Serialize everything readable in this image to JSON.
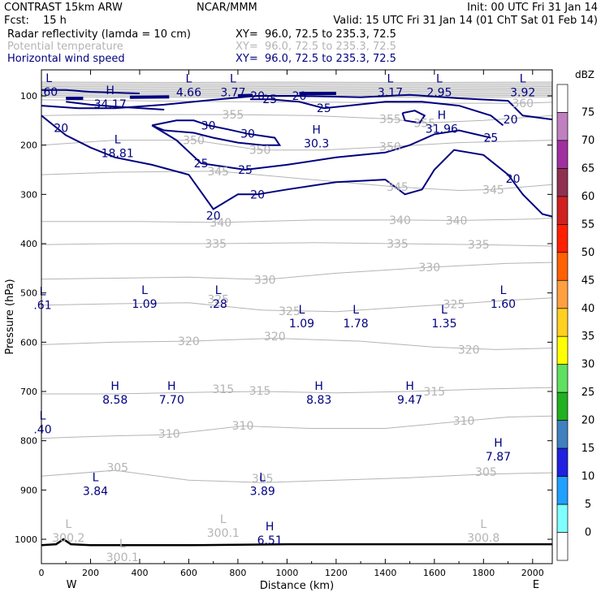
{
  "header": {
    "model": "CONTRAST 15km ARW",
    "center": "NCAR/MMM",
    "init": "Init: 00 UTC Fri 31 Jan 14",
    "fcst_label": "Fcst:",
    "fcst_value": "15 h",
    "valid": "Valid: 15 UTC Fri 31 Jan 14 (01 ChT Sat 01 Feb 14)"
  },
  "fields": [
    {
      "name": "Radar reflectivity (lamda = 10 cm)",
      "xy": "XY=  96.0, 72.5 to 235.3, 72.5"
    },
    {
      "name": "Potential temperature",
      "xy": "XY=  96.0, 72.5 to 235.3, 72.5"
    },
    {
      "name": "Horizontal wind speed",
      "xy": "XY=  96.0, 72.5 to 235.3, 72.5"
    }
  ],
  "colors": {
    "wind": "#000080",
    "theta": "#b4b4b4",
    "terrain": "#000000"
  },
  "chart_data": {
    "type": "contour",
    "xlabel": "Distance (km)",
    "ylabel": "Pressure (hPa)",
    "xlim": [
      0,
      2080
    ],
    "ylim": [
      1050,
      70
    ],
    "x_ticks": [
      "0",
      "200",
      "400",
      "600",
      "800",
      "1000",
      "1200",
      "1400",
      "1600",
      "1800",
      "2000"
    ],
    "y_ticks": [
      "100",
      "200",
      "300",
      "400",
      "500",
      "600",
      "700",
      "800",
      "900",
      "1000"
    ],
    "x_end_labels": {
      "left": "W",
      "right": "E"
    },
    "colorbar": {
      "unit": "dBZ",
      "levels": [
        "75",
        "70",
        "65",
        "60",
        "55",
        "50",
        "45",
        "40",
        "35",
        "30",
        "25",
        "20",
        "15",
        "10",
        "5",
        "0"
      ],
      "colors": [
        "#ffffff",
        "#c080c0",
        "#a030a0",
        "#903050",
        "#d02020",
        "#ff2000",
        "#ff6000",
        "#ffa040",
        "#ffd020",
        "#ffff00",
        "#60e060",
        "#20b020",
        "#4080c0",
        "#2020e0",
        "#20a0ff",
        "#80ffff",
        "#ffffff"
      ]
    },
    "theta_contours": {
      "levels": [
        300,
        305,
        310,
        315,
        320,
        325,
        330,
        335,
        340,
        345,
        350,
        355,
        360
      ],
      "labels": [
        {
          "text": "360",
          "x": 1960,
          "p": 115
        },
        {
          "text": "355",
          "x": 1420,
          "p": 147
        },
        {
          "text": "355",
          "x": 1560,
          "p": 155
        },
        {
          "text": "355",
          "x": 780,
          "p": 138
        },
        {
          "text": "350",
          "x": 620,
          "p": 190
        },
        {
          "text": "350",
          "x": 890,
          "p": 210
        },
        {
          "text": "350",
          "x": 1420,
          "p": 203
        },
        {
          "text": "345",
          "x": 720,
          "p": 253
        },
        {
          "text": "345",
          "x": 1450,
          "p": 285
        },
        {
          "text": "345",
          "x": 1840,
          "p": 290
        },
        {
          "text": "340",
          "x": 730,
          "p": 357
        },
        {
          "text": "340",
          "x": 1460,
          "p": 352
        },
        {
          "text": "340",
          "x": 1690,
          "p": 353
        },
        {
          "text": "335",
          "x": 710,
          "p": 400
        },
        {
          "text": "335",
          "x": 1450,
          "p": 400
        },
        {
          "text": "335",
          "x": 1780,
          "p": 402
        },
        {
          "text": "330",
          "x": 910,
          "p": 473
        },
        {
          "text": "330",
          "x": 1580,
          "p": 448
        },
        {
          "text": "325",
          "x": 720,
          "p": 513
        },
        {
          "text": "325",
          "x": 1010,
          "p": 537
        },
        {
          "text": "325",
          "x": 1680,
          "p": 523
        },
        {
          "text": "320",
          "x": 600,
          "p": 598
        },
        {
          "text": "320",
          "x": 950,
          "p": 588
        },
        {
          "text": "320",
          "x": 1740,
          "p": 615
        },
        {
          "text": "315",
          "x": 740,
          "p": 695
        },
        {
          "text": "315",
          "x": 890,
          "p": 698
        },
        {
          "text": "315",
          "x": 1600,
          "p": 700
        },
        {
          "text": "310",
          "x": 520,
          "p": 786
        },
        {
          "text": "310",
          "x": 820,
          "p": 769
        },
        {
          "text": "310",
          "x": 1720,
          "p": 759
        },
        {
          "text": "305",
          "x": 310,
          "p": 854
        },
        {
          "text": "305",
          "x": 900,
          "p": 876
        },
        {
          "text": "305",
          "x": 1810,
          "p": 863
        }
      ]
    },
    "wind_contours": {
      "levels": [
        20,
        25,
        30
      ],
      "labels": [
        {
          "text": "20",
          "x": 80,
          "p": 165
        },
        {
          "text": "20",
          "x": 1050,
          "p": 100
        },
        {
          "text": "20",
          "x": 880,
          "p": 100
        },
        {
          "text": "25",
          "x": 930,
          "p": 107
        },
        {
          "text": "25",
          "x": 1150,
          "p": 125
        },
        {
          "text": "25",
          "x": 650,
          "p": 237
        },
        {
          "text": "25",
          "x": 830,
          "p": 250
        },
        {
          "text": "25",
          "x": 1830,
          "p": 185
        },
        {
          "text": "30",
          "x": 680,
          "p": 160
        },
        {
          "text": "30",
          "x": 840,
          "p": 177
        },
        {
          "text": "20",
          "x": 880,
          "p": 300
        },
        {
          "text": "20",
          "x": 700,
          "p": 343
        },
        {
          "text": "20",
          "x": 1910,
          "p": 148
        },
        {
          "text": "20",
          "x": 1920,
          "p": 268
        }
      ]
    },
    "extrema_wind": [
      {
        "kind": "L",
        "value": ".60",
        "x": 30,
        "p": 85
      },
      {
        "kind": "H",
        "value": "34.17",
        "x": 280,
        "p": 110
      },
      {
        "kind": "L",
        "value": "4.66",
        "x": 600,
        "p": 86
      },
      {
        "kind": "L",
        "value": "3.77",
        "x": 780,
        "p": 86
      },
      {
        "kind": "L",
        "value": "3.17",
        "x": 1420,
        "p": 86
      },
      {
        "kind": "L",
        "value": "2.95",
        "x": 1620,
        "p": 86
      },
      {
        "kind": "L",
        "value": "3.92",
        "x": 1960,
        "p": 86
      },
      {
        "kind": "H",
        "value": "31.96",
        "x": 1630,
        "p": 160
      },
      {
        "kind": "L",
        "value": "18.81",
        "x": 310,
        "p": 210
      },
      {
        "kind": "H",
        "value": "30.3",
        "x": 1120,
        "p": 190
      },
      {
        "kind": "L",
        "value": "1.09",
        "x": 420,
        "p": 515
      },
      {
        "kind": "L",
        "value": ".28",
        "x": 720,
        "p": 515
      },
      {
        "kind": "L",
        "value": ".61",
        "x": 0,
        "p": 518
      },
      {
        "kind": "L",
        "value": "1.60",
        "x": 1880,
        "p": 515
      },
      {
        "kind": "L",
        "value": "1.09",
        "x": 1060,
        "p": 555
      },
      {
        "kind": "L",
        "value": "1.78",
        "x": 1280,
        "p": 555
      },
      {
        "kind": "L",
        "value": "1.35",
        "x": 1640,
        "p": 555
      },
      {
        "kind": "H",
        "value": "8.58",
        "x": 300,
        "p": 710
      },
      {
        "kind": "H",
        "value": "7.70",
        "x": 530,
        "p": 710
      },
      {
        "kind": "H",
        "value": "8.83",
        "x": 1130,
        "p": 710
      },
      {
        "kind": "H",
        "value": "9.47",
        "x": 1500,
        "p": 710
      },
      {
        "kind": "L",
        "value": ".40",
        "x": 0,
        "p": 770
      },
      {
        "kind": "H",
        "value": "7.87",
        "x": 1860,
        "p": 825
      },
      {
        "kind": "L",
        "value": "3.84",
        "x": 220,
        "p": 895
      },
      {
        "kind": "L",
        "value": "3.89",
        "x": 900,
        "p": 895
      },
      {
        "kind": "H",
        "value": "6.51",
        "x": 930,
        "p": 995
      }
    ],
    "extrema_theta": [
      {
        "kind": "L",
        "value": "300.2",
        "x": 110,
        "p": 990
      },
      {
        "kind": "L",
        "value": "300.1",
        "x": 740,
        "p": 980
      },
      {
        "kind": "L",
        "value": "300.1",
        "x": 330,
        "p": 1030
      },
      {
        "kind": "L",
        "value": "300.8",
        "x": 1800,
        "p": 990
      }
    ]
  }
}
